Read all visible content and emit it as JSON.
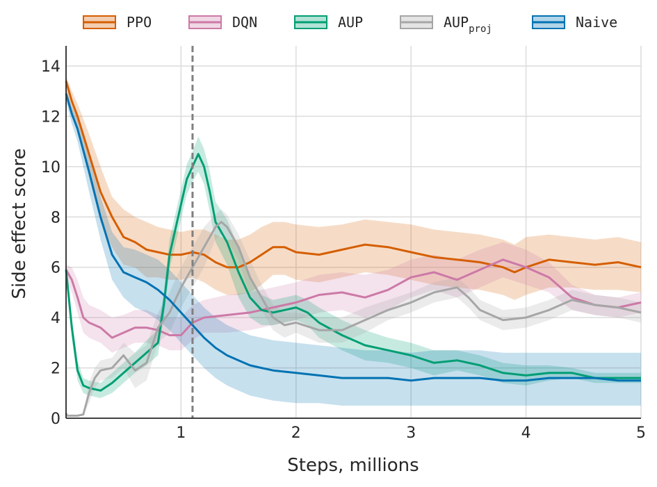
{
  "chart_data": {
    "type": "line",
    "xlabel": "Steps, millions",
    "ylabel": "Side effect score",
    "xlim": [
      0,
      5
    ],
    "ylim": [
      0,
      14.8
    ],
    "xticks": [
      1,
      2,
      3,
      4,
      5
    ],
    "yticks": [
      0,
      2,
      4,
      6,
      8,
      10,
      12,
      14
    ],
    "grid": true,
    "legend_position": "top",
    "vline": {
      "x": 1.1,
      "style": "dashed",
      "color": "#7f7f7f"
    },
    "series": [
      {
        "name": "PPO",
        "color": "#d55e00",
        "x": [
          0,
          0.05,
          0.1,
          0.2,
          0.3,
          0.4,
          0.5,
          0.6,
          0.7,
          0.8,
          0.9,
          1.0,
          1.1,
          1.2,
          1.3,
          1.4,
          1.5,
          1.6,
          1.7,
          1.8,
          1.9,
          2.0,
          2.2,
          2.4,
          2.6,
          2.8,
          3.0,
          3.2,
          3.4,
          3.6,
          3.8,
          3.9,
          4.0,
          4.2,
          4.4,
          4.6,
          4.8,
          5.0
        ],
        "y": [
          13.4,
          12.6,
          12.0,
          10.5,
          9.0,
          8.0,
          7.2,
          7.0,
          6.7,
          6.6,
          6.5,
          6.5,
          6.6,
          6.5,
          6.2,
          6.0,
          6.0,
          6.2,
          6.5,
          6.8,
          6.8,
          6.6,
          6.5,
          6.7,
          6.9,
          6.8,
          6.6,
          6.4,
          6.3,
          6.2,
          6.0,
          5.8,
          6.0,
          6.3,
          6.2,
          6.1,
          6.2,
          6.0
        ],
        "upper": [
          13.6,
          13.0,
          12.5,
          11.3,
          10.0,
          8.8,
          8.3,
          8.0,
          7.8,
          7.6,
          7.5,
          7.4,
          7.5,
          7.5,
          7.3,
          7.1,
          7.1,
          7.3,
          7.6,
          7.8,
          7.8,
          7.7,
          7.6,
          7.7,
          7.9,
          7.8,
          7.7,
          7.5,
          7.4,
          7.3,
          7.1,
          6.9,
          7.2,
          7.3,
          7.2,
          7.1,
          7.2,
          7.0
        ],
        "lower": [
          13.0,
          12.2,
          11.4,
          9.6,
          7.8,
          6.8,
          6.1,
          6.0,
          5.6,
          5.6,
          5.5,
          5.5,
          5.6,
          5.4,
          5.1,
          4.9,
          4.9,
          5.0,
          5.3,
          5.7,
          5.7,
          5.5,
          5.4,
          5.6,
          5.8,
          5.7,
          5.5,
          5.3,
          5.2,
          5.1,
          4.9,
          4.7,
          4.9,
          5.2,
          5.2,
          5.1,
          5.1,
          5.0
        ]
      },
      {
        "name": "DQN",
        "color": "#cc79a7",
        "x": [
          0,
          0.05,
          0.1,
          0.15,
          0.2,
          0.3,
          0.4,
          0.5,
          0.6,
          0.7,
          0.8,
          0.9,
          1.0,
          1.1,
          1.2,
          1.4,
          1.6,
          1.8,
          2.0,
          2.2,
          2.4,
          2.6,
          2.8,
          3.0,
          3.2,
          3.4,
          3.6,
          3.8,
          4.0,
          4.2,
          4.4,
          4.6,
          4.8,
          5.0
        ],
        "y": [
          5.9,
          5.5,
          4.8,
          4.0,
          3.8,
          3.6,
          3.2,
          3.4,
          3.6,
          3.6,
          3.5,
          3.3,
          3.3,
          3.8,
          4.0,
          4.1,
          4.2,
          4.4,
          4.6,
          4.9,
          5.0,
          4.8,
          5.1,
          5.6,
          5.8,
          5.5,
          5.9,
          6.3,
          6.0,
          5.6,
          4.8,
          4.5,
          4.4,
          4.6
        ],
        "upper": [
          6.1,
          6.0,
          5.5,
          4.8,
          4.5,
          4.3,
          4.0,
          4.1,
          4.3,
          4.3,
          4.1,
          4.0,
          4.0,
          4.5,
          4.7,
          4.9,
          5.0,
          5.2,
          5.4,
          5.7,
          5.8,
          5.7,
          5.9,
          6.3,
          6.5,
          6.3,
          6.7,
          7.0,
          6.7,
          6.2,
          5.3,
          4.9,
          4.8,
          5.0
        ],
        "lower": [
          5.5,
          5.0,
          4.2,
          3.4,
          3.2,
          3.0,
          2.6,
          2.8,
          3.0,
          3.0,
          2.9,
          2.7,
          2.7,
          3.1,
          3.4,
          3.4,
          3.5,
          3.7,
          3.9,
          4.2,
          4.3,
          4.0,
          4.3,
          4.8,
          5.1,
          4.8,
          5.2,
          5.6,
          5.3,
          5.0,
          4.3,
          4.1,
          4.0,
          4.2
        ]
      },
      {
        "name": "AUP",
        "color": "#009e73",
        "x": [
          0,
          0.05,
          0.1,
          0.15,
          0.2,
          0.3,
          0.4,
          0.5,
          0.6,
          0.7,
          0.8,
          0.85,
          0.9,
          1.0,
          1.05,
          1.1,
          1.15,
          1.2,
          1.25,
          1.3,
          1.4,
          1.5,
          1.6,
          1.7,
          1.8,
          1.9,
          2.0,
          2.1,
          2.2,
          2.4,
          2.6,
          2.8,
          3.0,
          3.2,
          3.4,
          3.6,
          3.8,
          4.0,
          4.2,
          4.4,
          4.6,
          4.8,
          5.0
        ],
        "y": [
          5.9,
          3.6,
          1.9,
          1.3,
          1.2,
          1.1,
          1.4,
          1.8,
          2.2,
          2.6,
          3.0,
          4.5,
          6.5,
          8.5,
          9.5,
          10.0,
          10.5,
          10.0,
          9.0,
          7.8,
          7.0,
          5.8,
          4.8,
          4.3,
          4.2,
          4.3,
          4.4,
          4.2,
          3.8,
          3.3,
          2.9,
          2.7,
          2.5,
          2.2,
          2.3,
          2.1,
          1.8,
          1.7,
          1.8,
          1.8,
          1.6,
          1.6,
          1.6
        ],
        "upper": [
          6.1,
          4.0,
          2.3,
          1.6,
          1.5,
          1.4,
          1.8,
          2.2,
          2.6,
          3.1,
          3.5,
          5.0,
          7.1,
          9.1,
          10.1,
          10.6,
          11.2,
          10.7,
          9.8,
          8.6,
          7.9,
          6.8,
          5.6,
          4.9,
          4.7,
          4.8,
          4.9,
          4.7,
          4.4,
          3.9,
          3.5,
          3.2,
          3.0,
          2.7,
          2.7,
          2.5,
          2.2,
          2.1,
          2.1,
          2.0,
          1.8,
          1.8,
          1.8
        ],
        "lower": [
          5.7,
          3.2,
          1.5,
          1.0,
          0.9,
          0.8,
          1.0,
          1.4,
          1.8,
          2.1,
          2.5,
          4.0,
          5.9,
          7.9,
          8.9,
          9.4,
          9.8,
          9.3,
          8.2,
          7.0,
          6.1,
          4.8,
          4.0,
          3.7,
          3.7,
          3.8,
          3.9,
          3.7,
          3.2,
          2.7,
          2.3,
          2.2,
          2.0,
          1.7,
          1.9,
          1.7,
          1.4,
          1.3,
          1.5,
          1.6,
          1.4,
          1.4,
          1.4
        ]
      },
      {
        "name": "AUP",
        "subscript": "proj",
        "color": "#a6a6a6",
        "x": [
          0,
          0.01,
          0.05,
          0.1,
          0.15,
          0.2,
          0.25,
          0.3,
          0.4,
          0.5,
          0.6,
          0.7,
          0.8,
          0.9,
          1.0,
          1.1,
          1.2,
          1.3,
          1.35,
          1.4,
          1.5,
          1.6,
          1.7,
          1.8,
          1.9,
          2.0,
          2.2,
          2.4,
          2.6,
          2.8,
          3.0,
          3.2,
          3.4,
          3.5,
          3.6,
          3.8,
          4.0,
          4.2,
          4.4,
          4.6,
          4.8,
          5.0
        ],
        "y": [
          0.2,
          0.1,
          0.1,
          0.1,
          0.15,
          1.0,
          1.6,
          1.9,
          2.0,
          2.5,
          1.9,
          2.2,
          3.6,
          4.2,
          5.2,
          6.0,
          6.8,
          7.6,
          7.8,
          7.6,
          6.8,
          5.6,
          4.8,
          4.0,
          3.7,
          3.8,
          3.5,
          3.5,
          3.9,
          4.3,
          4.6,
          5.0,
          5.2,
          4.8,
          4.3,
          3.9,
          4.0,
          4.3,
          4.7,
          4.5,
          4.4,
          4.2
        ],
        "upper": [
          0.2,
          0.1,
          0.1,
          0.1,
          0.15,
          1.4,
          2.0,
          2.3,
          2.4,
          3.0,
          2.6,
          2.9,
          4.2,
          5.0,
          6.0,
          6.8,
          7.6,
          8.1,
          8.3,
          8.1,
          7.3,
          6.3,
          5.3,
          4.5,
          4.2,
          4.2,
          4.0,
          4.0,
          4.4,
          4.7,
          5.0,
          5.4,
          5.6,
          5.2,
          4.7,
          4.3,
          4.4,
          4.7,
          5.1,
          4.9,
          4.8,
          4.6
        ],
        "lower": [
          0.2,
          0.1,
          0.1,
          0.1,
          0.15,
          0.6,
          1.2,
          1.5,
          1.6,
          2.0,
          1.2,
          1.5,
          3.0,
          3.4,
          4.4,
          5.2,
          6.0,
          7.1,
          7.3,
          7.1,
          6.3,
          4.9,
          4.3,
          3.5,
          3.2,
          3.4,
          3.0,
          3.0,
          3.4,
          3.9,
          4.2,
          4.6,
          4.8,
          4.4,
          3.9,
          3.5,
          3.6,
          3.9,
          4.3,
          4.1,
          4.0,
          3.8
        ]
      },
      {
        "name": "Naive",
        "color": "#0072b2",
        "x": [
          0,
          0.05,
          0.1,
          0.2,
          0.3,
          0.4,
          0.5,
          0.6,
          0.7,
          0.8,
          0.9,
          1.0,
          1.1,
          1.2,
          1.3,
          1.4,
          1.5,
          1.6,
          1.7,
          1.8,
          2.0,
          2.2,
          2.4,
          2.6,
          2.8,
          3.0,
          3.2,
          3.4,
          3.6,
          3.8,
          4.0,
          4.2,
          4.4,
          4.6,
          4.8,
          5.0
        ],
        "y": [
          12.9,
          12.1,
          11.5,
          9.8,
          8.0,
          6.5,
          5.8,
          5.6,
          5.4,
          5.1,
          4.7,
          4.2,
          3.7,
          3.2,
          2.8,
          2.5,
          2.3,
          2.1,
          2.0,
          1.9,
          1.8,
          1.7,
          1.6,
          1.6,
          1.6,
          1.5,
          1.6,
          1.6,
          1.6,
          1.5,
          1.5,
          1.6,
          1.6,
          1.6,
          1.5,
          1.5
        ],
        "upper": [
          13.1,
          12.4,
          11.9,
          10.4,
          8.8,
          7.4,
          6.8,
          6.7,
          6.5,
          6.3,
          5.9,
          5.4,
          4.9,
          4.4,
          4.0,
          3.7,
          3.5,
          3.3,
          3.2,
          3.1,
          3.0,
          2.9,
          2.8,
          2.7,
          2.7,
          2.6,
          2.7,
          2.7,
          2.7,
          2.6,
          2.6,
          2.6,
          2.6,
          2.6,
          2.6,
          2.6
        ],
        "lower": [
          12.6,
          11.7,
          11.0,
          9.0,
          7.1,
          5.5,
          4.8,
          4.4,
          4.2,
          3.9,
          3.5,
          3.0,
          2.5,
          2.0,
          1.6,
          1.3,
          1.1,
          0.9,
          0.8,
          0.7,
          0.6,
          0.6,
          0.5,
          0.5,
          0.5,
          0.5,
          0.5,
          0.5,
          0.5,
          0.5,
          0.5,
          0.5,
          0.5,
          0.5,
          0.5,
          0.5
        ]
      }
    ]
  }
}
